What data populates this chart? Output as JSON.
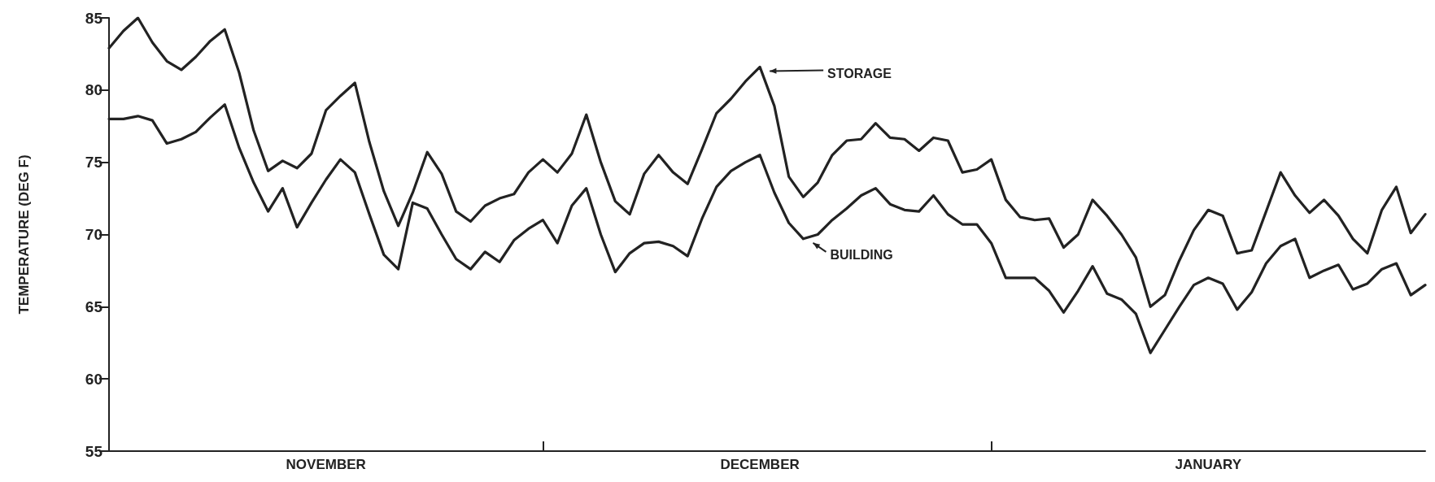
{
  "chart_data": {
    "type": "line",
    "ylabel": "TEMPERATURE (DEG F)",
    "ylim": [
      55,
      85
    ],
    "yticks": [
      55,
      60,
      65,
      70,
      75,
      80,
      85
    ],
    "categories": [
      null,
      null,
      null,
      null,
      null,
      null,
      null,
      null,
      null,
      null,
      null,
      null,
      null,
      null,
      null,
      "NOVEMBER",
      null,
      null,
      null,
      null,
      null,
      null,
      null,
      null,
      null,
      null,
      null,
      null,
      null,
      null,
      null,
      null,
      null,
      null,
      null,
      null,
      null,
      null,
      null,
      null,
      null,
      null,
      null,
      null,
      null,
      "DECEMBER",
      null,
      null,
      null,
      null,
      null,
      null,
      null,
      null,
      null,
      null,
      null,
      null,
      null,
      null,
      null,
      null,
      null,
      null,
      null,
      null,
      null,
      null,
      null,
      null,
      null,
      null,
      null,
      null,
      null,
      null,
      "JANUARY",
      null,
      null,
      null,
      null,
      null,
      null,
      null,
      null,
      null,
      null,
      null,
      null,
      null,
      null,
      null
    ],
    "grid": false,
    "legend": "top",
    "marker": "none",
    "line_style": "solid",
    "series": [
      {
        "name": "STORAGE",
        "color": "#222222",
        "values": [
          82.9,
          84.1,
          85.0,
          83.3,
          82.0,
          81.4,
          82.3,
          83.4,
          84.2,
          81.2,
          77.2,
          74.4,
          75.1,
          74.6,
          75.6,
          78.6,
          79.6,
          80.5,
          76.4,
          73.0,
          70.6,
          72.9,
          75.7,
          74.2,
          71.6,
          70.9,
          72.0,
          72.5,
          72.8,
          74.3,
          75.2,
          74.3,
          75.6,
          78.3,
          75.0,
          72.3,
          71.4,
          74.2,
          75.5,
          74.3,
          73.5,
          75.9,
          78.4,
          79.4,
          80.6,
          81.6,
          78.9,
          74.0,
          72.6,
          73.6,
          75.5,
          76.5,
          76.6,
          77.7,
          76.7,
          76.6,
          75.8,
          76.7,
          76.5,
          74.3,
          74.5,
          75.2,
          72.4,
          71.2,
          71.0,
          71.1,
          69.1,
          70.0,
          72.4,
          71.3,
          70.0,
          68.4,
          65.0,
          65.8,
          68.2,
          70.3,
          71.7,
          71.3,
          68.7,
          68.9,
          71.6,
          74.3,
          72.7,
          71.5,
          72.4,
          71.3,
          69.7,
          68.7,
          71.7,
          73.3,
          70.1,
          71.4
        ]
      },
      {
        "name": "BUILDING",
        "color": "#222222",
        "values": [
          78.0,
          78.0,
          78.2,
          77.9,
          76.3,
          76.6,
          77.1,
          78.1,
          79.0,
          76.0,
          73.6,
          71.6,
          73.2,
          70.5,
          72.2,
          73.8,
          75.2,
          74.3,
          71.4,
          68.6,
          67.6,
          72.2,
          71.8,
          70.0,
          68.3,
          67.6,
          68.8,
          68.1,
          69.6,
          70.4,
          71.0,
          69.4,
          72.0,
          73.2,
          70.0,
          67.4,
          68.7,
          69.4,
          69.5,
          69.2,
          68.5,
          71.1,
          73.3,
          74.4,
          75.0,
          75.5,
          72.9,
          70.8,
          69.7,
          70.0,
          71.0,
          71.8,
          72.7,
          73.2,
          72.1,
          71.7,
          71.6,
          72.7,
          71.4,
          70.7,
          70.7,
          69.4,
          67.0,
          67.0,
          67.0,
          66.1,
          64.6,
          66.1,
          67.8,
          65.9,
          65.5,
          64.5,
          61.8,
          63.4,
          65.0,
          66.5,
          67.0,
          66.6,
          64.8,
          66.0,
          68.0,
          69.2,
          69.7,
          67.0,
          67.5,
          67.9,
          66.2,
          66.6,
          67.6,
          68.0,
          65.8,
          66.5
        ]
      }
    ]
  }
}
